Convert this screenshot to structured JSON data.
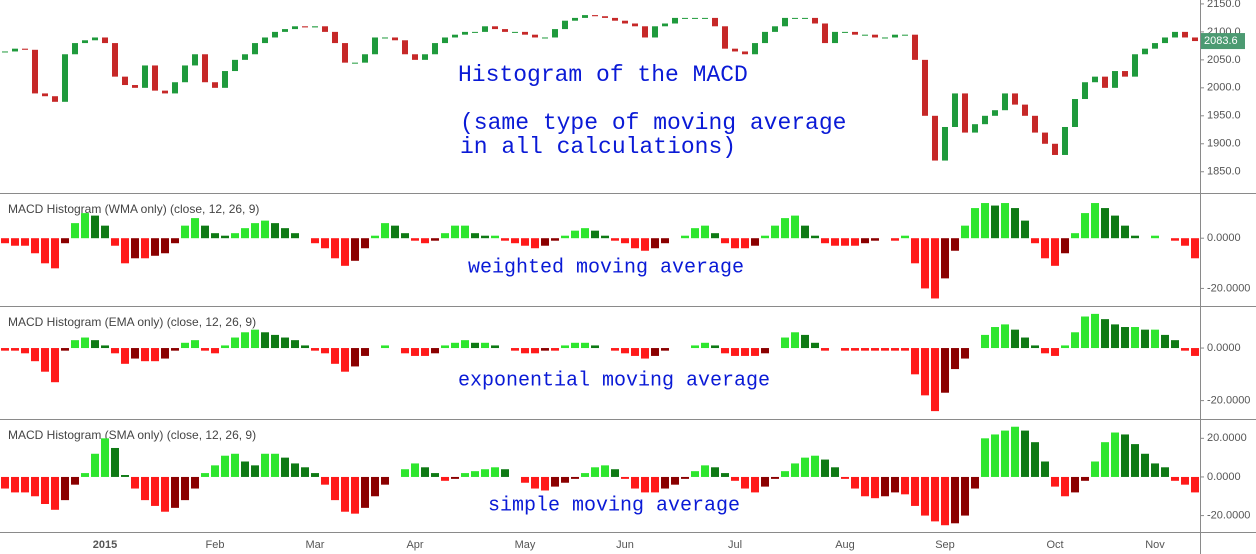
{
  "chart_data": [
    {
      "type": "candlestick",
      "annotations": [
        "Histogram of the MACD",
        "(same type of moving average",
        "in all calculations)"
      ],
      "values": [
        2065,
        2070,
        2068,
        1990,
        1985,
        1975,
        2060,
        2080,
        2085,
        2090,
        2080,
        2020,
        2005,
        2000,
        2040,
        1995,
        1990,
        2010,
        2040,
        2060,
        2010,
        2000,
        2030,
        2050,
        2060,
        2080,
        2090,
        2100,
        2105,
        2110,
        2108,
        2110,
        2100,
        2080,
        2045,
        2045,
        2060,
        2090,
        2090,
        2085,
        2060,
        2050,
        2060,
        2080,
        2090,
        2095,
        2100,
        2100,
        2110,
        2105,
        2100,
        2100,
        2095,
        2090,
        2090,
        2105,
        2120,
        2125,
        2130,
        2128,
        2125,
        2120,
        2115,
        2110,
        2090,
        2110,
        2115,
        2125,
        2125,
        2125,
        2125,
        2110,
        2070,
        2065,
        2060,
        2080,
        2100,
        2110,
        2125,
        2125,
        2125,
        2115,
        2080,
        2100,
        2100,
        2095,
        2095,
        2090,
        2090,
        2095,
        2095,
        2050,
        1950,
        1870,
        1930,
        1990,
        1920,
        1935,
        1950,
        1960,
        1990,
        1970,
        1950,
        1920,
        1900,
        1880,
        1930,
        1980,
        2010,
        2020,
        2000,
        2030,
        2020,
        2060,
        2070,
        2080,
        2090,
        2100,
        2090,
        2083.6
      ],
      "last_label": "2083.6",
      "colors": {
        "up": "#1f9a3c",
        "down": "#c62828",
        "tag": "#4c9a72"
      },
      "ylim": [
        1812,
        2157
      ],
      "yticks": [
        {
          "value": 1850,
          "label": "1850.0"
        },
        {
          "value": 1900,
          "label": "1900.0"
        },
        {
          "value": 1950,
          "label": "1950.0"
        },
        {
          "value": 2000,
          "label": "2000.0"
        },
        {
          "value": 2050,
          "label": "2050.0"
        },
        {
          "value": 2100,
          "label": "2100.0"
        },
        {
          "value": 2150,
          "label": "2150.0"
        }
      ]
    },
    {
      "type": "bar",
      "title": "MACD Histogram (WMA only) (close, 12, 26, 9)",
      "annotations": [
        "weighted moving average"
      ],
      "values": [
        -2,
        -3,
        -3,
        -6,
        -10,
        -12,
        -2,
        6,
        10,
        9,
        5,
        -3,
        -10,
        -8,
        -8,
        -7,
        -6,
        -2,
        5,
        8,
        5,
        2,
        1,
        2,
        4,
        6,
        7,
        6,
        4,
        2,
        0,
        -2,
        -4,
        -8,
        -11,
        -9,
        -4,
        1,
        6,
        5,
        2,
        -1,
        -2,
        -1,
        2,
        5,
        5,
        2,
        1,
        1,
        -1,
        -2,
        -3,
        -4,
        -3,
        -1,
        1,
        3,
        4,
        3,
        1,
        -1,
        -2,
        -4,
        -5,
        -4,
        -2,
        0,
        1,
        4,
        5,
        2,
        -2,
        -4,
        -4,
        -3,
        1,
        5,
        8,
        9,
        5,
        1,
        -2,
        -3,
        -3,
        -3,
        -2,
        -1,
        0,
        -1,
        1,
        -10,
        -20,
        -24,
        -16,
        -5,
        5,
        12,
        14,
        13,
        14,
        12,
        7,
        -2,
        -8,
        -11,
        -6,
        2,
        10,
        14,
        12,
        9,
        5,
        1,
        0,
        1,
        0,
        -1,
        -3,
        -8
      ],
      "colors": {
        "pos_up": "#2ee62e",
        "pos_down": "#0e7a14",
        "neg_down": "#ff1a1a",
        "neg_up": "#8b0000"
      },
      "ylim": [
        -27,
        18
      ],
      "yticks": [
        {
          "value": -20,
          "label": "-20.0000"
        },
        {
          "value": 0,
          "label": "0.0000"
        }
      ]
    },
    {
      "type": "bar",
      "title": "MACD Histogram (EMA only) (close, 12, 26, 9)",
      "annotations": [
        "exponential moving average"
      ],
      "values": [
        -1,
        -1,
        -2,
        -5,
        -9,
        -13,
        -1,
        3,
        4,
        3,
        1,
        -2,
        -6,
        -4,
        -5,
        -5,
        -4,
        -1,
        2,
        3,
        -1,
        -2,
        1,
        4,
        6,
        7,
        6,
        5,
        4,
        3,
        1,
        -1,
        -2,
        -6,
        -9,
        -7,
        -3,
        0,
        1,
        0,
        -2,
        -3,
        -3,
        -2,
        1,
        2,
        3,
        2,
        2,
        1,
        0,
        -1,
        -2,
        -2,
        -1,
        -1,
        1,
        2,
        2,
        1,
        0,
        -1,
        -2,
        -3,
        -4,
        -3,
        -1,
        0,
        0,
        1,
        2,
        1,
        -2,
        -3,
        -3,
        -3,
        -2,
        0,
        4,
        6,
        5,
        2,
        -1,
        0,
        -1,
        -1,
        -1,
        -1,
        -1,
        -1,
        -1,
        -10,
        -18,
        -24,
        -17,
        -8,
        -4,
        0,
        5,
        8,
        9,
        7,
        4,
        1,
        -2,
        -3,
        1,
        6,
        12,
        13,
        11,
        9,
        8,
        8,
        7,
        7,
        5,
        3,
        -1,
        -3
      ],
      "colors": {
        "pos_up": "#2ee62e",
        "pos_down": "#0e7a14",
        "neg_down": "#ff1a1a",
        "neg_up": "#8b0000"
      },
      "ylim": [
        -27,
        16
      ],
      "yticks": [
        {
          "value": -20,
          "label": "-20.0000"
        },
        {
          "value": 0,
          "label": "0.0000"
        }
      ]
    },
    {
      "type": "bar",
      "title": "MACD Histogram (SMA only) (close, 12, 26, 9)",
      "annotations": [
        "simple moving average"
      ],
      "categories": [
        null,
        null,
        null,
        null,
        null,
        null,
        null,
        null,
        null,
        null,
        "2015",
        null,
        null,
        null,
        null,
        null,
        null,
        null,
        null,
        null,
        null,
        "Feb",
        null,
        null,
        null,
        null,
        null,
        null,
        null,
        null,
        null,
        "Mar",
        null,
        null,
        null,
        null,
        null,
        null,
        null,
        null,
        null,
        "Apr",
        null,
        null,
        null,
        null,
        null,
        null,
        null,
        null,
        null,
        null,
        "May",
        null,
        null,
        null,
        null,
        null,
        null,
        null,
        null,
        null,
        "Jun",
        null,
        null,
        null,
        null,
        null,
        null,
        null,
        null,
        null,
        null,
        "Jul",
        null,
        null,
        null,
        null,
        null,
        null,
        null,
        null,
        null,
        null,
        "Aug",
        null,
        null,
        null,
        null,
        null,
        null,
        null,
        null,
        null,
        "Sep",
        null,
        null,
        null,
        null,
        null,
        null,
        null,
        null,
        null,
        null,
        "Oct",
        null,
        null,
        null,
        null,
        null,
        null,
        null,
        null,
        null,
        "Nov",
        null,
        null,
        null,
        null
      ],
      "values": [
        -6,
        -8,
        -8,
        -10,
        -14,
        -17,
        -12,
        -4,
        2,
        12,
        20,
        15,
        1,
        -6,
        -12,
        -15,
        -18,
        -16,
        -12,
        -6,
        2,
        6,
        11,
        12,
        8,
        6,
        12,
        12,
        10,
        7,
        5,
        2,
        -4,
        -12,
        -18,
        -19,
        -16,
        -10,
        -4,
        0,
        4,
        7,
        5,
        2,
        -2,
        -1,
        2,
        3,
        4,
        5,
        4,
        0,
        -3,
        -6,
        -7,
        -5,
        -3,
        -1,
        2,
        5,
        6,
        4,
        -1,
        -6,
        -8,
        -8,
        -6,
        -4,
        -1,
        3,
        6,
        5,
        2,
        -2,
        -6,
        -8,
        -5,
        -1,
        3,
        7,
        10,
        11,
        9,
        5,
        -1,
        -6,
        -10,
        -11,
        -10,
        -8,
        -9,
        -15,
        -20,
        -23,
        -25,
        -24,
        -20,
        -6,
        20,
        22,
        24,
        26,
        24,
        18,
        8,
        -5,
        -10,
        -8,
        -2,
        8,
        18,
        23,
        22,
        17,
        12,
        7,
        5,
        -2,
        -4,
        -8
      ],
      "colors": {
        "pos_up": "#2ee62e",
        "pos_down": "#0e7a14",
        "neg_down": "#ff1a1a",
        "neg_up": "#8b0000"
      },
      "ylim": [
        -28.5,
        30
      ],
      "yticks": [
        {
          "value": -20,
          "label": "-20.0000"
        },
        {
          "value": 0,
          "label": "0.0000"
        },
        {
          "value": 20,
          "label": "20.0000"
        }
      ]
    }
  ]
}
